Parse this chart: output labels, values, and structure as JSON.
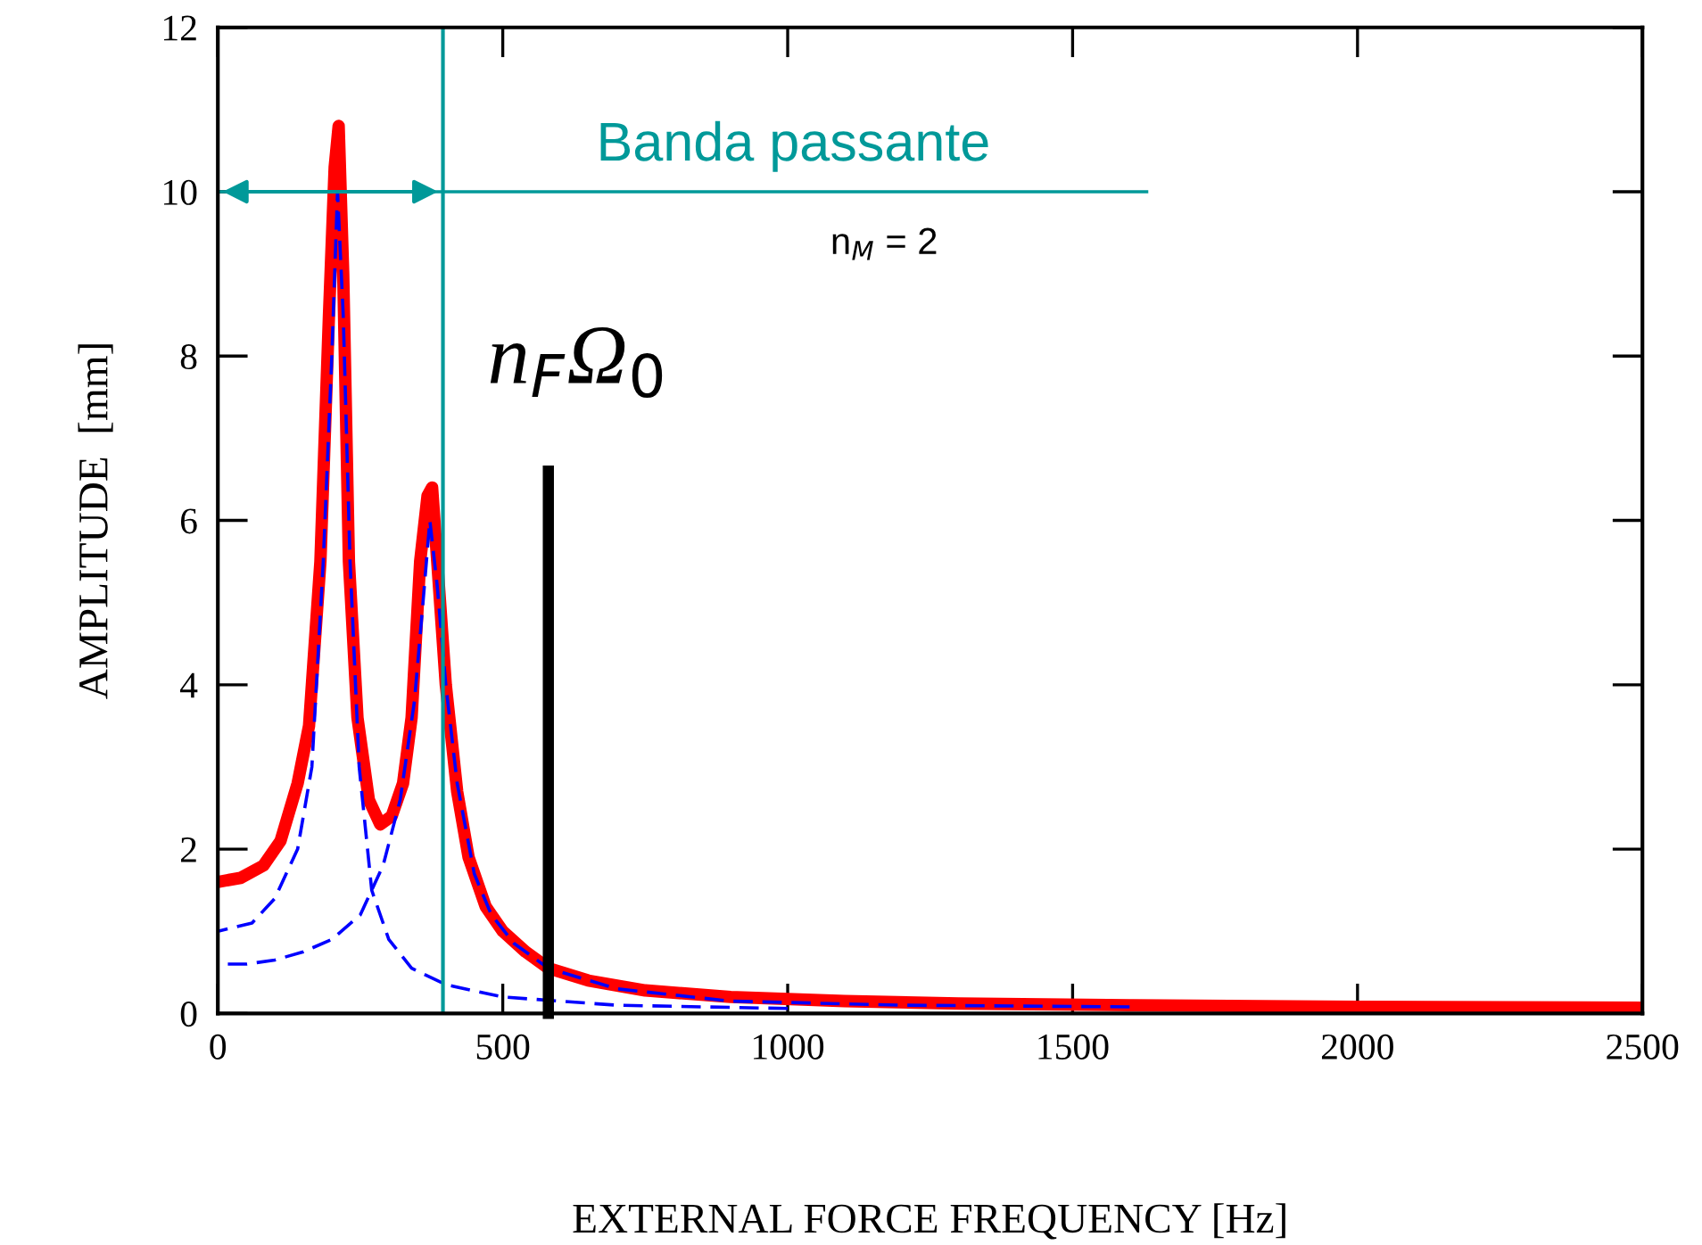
{
  "chart_data": {
    "type": "line",
    "xlabel": "EXTERNAL FORCE FREQUENCY [Hz]",
    "ylabel": "AMPLITUDE  [mm]",
    "xlim": [
      0,
      2500
    ],
    "ylim": [
      0,
      12
    ],
    "xticks": [
      0,
      500,
      1000,
      1500,
      2000,
      2500
    ],
    "yticks": [
      0,
      2,
      4,
      6,
      8,
      10,
      12
    ],
    "grid": false,
    "legend": false,
    "marker": "none",
    "series": [
      {
        "color": "#ff0000",
        "line_style": "solid",
        "x": [
          0,
          40,
          80,
          110,
          140,
          160,
          180,
          195,
          205,
          212,
          220,
          230,
          245,
          265,
          285,
          305,
          325,
          340,
          355,
          368,
          376,
          385,
          400,
          420,
          440,
          470,
          500,
          540,
          580,
          650,
          750,
          900,
          1100,
          1300,
          1600,
          2000,
          2500
        ],
        "values": [
          1.6,
          1.65,
          1.8,
          2.1,
          2.8,
          3.5,
          5.5,
          8.5,
          10.3,
          10.8,
          9,
          5.5,
          3.6,
          2.6,
          2.3,
          2.4,
          2.8,
          3.6,
          5.5,
          6.3,
          6.4,
          5.5,
          4,
          2.7,
          1.9,
          1.3,
          1.0,
          0.75,
          0.55,
          0.4,
          0.28,
          0.2,
          0.15,
          0.12,
          0.1,
          0.08,
          0.07
        ]
      },
      {
        "color": "#0000ff",
        "line_style": "dashed",
        "x": [
          0,
          60,
          100,
          140,
          165,
          185,
          200,
          210,
          220,
          232,
          248,
          270,
          300,
          340,
          400,
          500,
          700,
          1000
        ],
        "values": [
          1.0,
          1.1,
          1.4,
          2.0,
          3.0,
          5.5,
          8,
          10,
          8.5,
          5.5,
          3.0,
          1.5,
          0.9,
          0.55,
          0.35,
          0.2,
          0.1,
          0.06
        ]
      },
      {
        "color": "#0000ff",
        "line_style": "dashed",
        "x": [
          0,
          50,
          100,
          150,
          200,
          250,
          290,
          320,
          345,
          360,
          372,
          385,
          400,
          420,
          450,
          480,
          520,
          580,
          700,
          900,
          1200,
          1600
        ],
        "values": [
          0.6,
          0.6,
          0.65,
          0.75,
          0.9,
          1.2,
          1.8,
          2.6,
          3.8,
          5.0,
          6.0,
          5.2,
          4.0,
          2.8,
          1.7,
          1.2,
          0.85,
          0.55,
          0.3,
          0.15,
          0.1,
          0.08
        ]
      },
      {
        "color": "#000000",
        "line_style": "solid",
        "x": [
          580,
          580
        ],
        "values": [
          0,
          6.6
        ]
      },
      {
        "color": "#009999",
        "line_style": "solid",
        "x": [
          0,
          1630
        ],
        "values": [
          10,
          10
        ]
      }
    ],
    "ref_lines": [
      {
        "axis": "x",
        "value": 395,
        "color": "#009999",
        "line_style": "solid"
      }
    ],
    "annotations": [
      {
        "text": "Banda passante",
        "x": 1010,
        "y": 10
      },
      {
        "text": "n$_{F}$Ω$_{0}$",
        "x": 580,
        "y": 6.6
      },
      "n$_{M}$ = 2"
    ]
  }
}
